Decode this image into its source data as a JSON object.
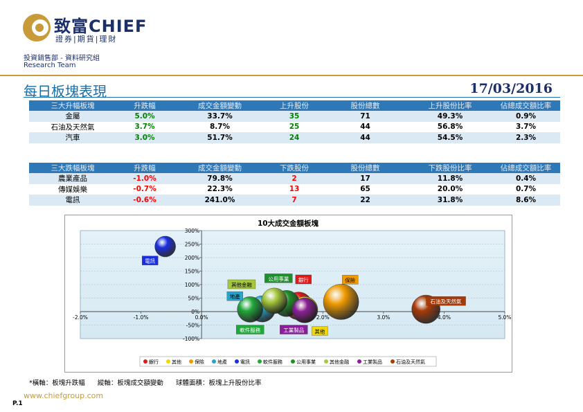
{
  "header": {
    "brand": "致富CHIEF",
    "brand_sub": "證券|期貨|理財",
    "department": "投資銷售部 - 資料研究組",
    "team": "Research Team"
  },
  "title": "每日板塊表現",
  "date": "17/03/2016",
  "gainers": {
    "columns": [
      "三大升幅板塊",
      "升跌幅",
      "成交金額變動",
      "上升股份",
      "股份總數",
      "上升股份比率",
      "佔總成交額比率"
    ],
    "rows": [
      [
        "金屬",
        "5.0%",
        "33.7%",
        "35",
        "71",
        "49.3%",
        "0.9%"
      ],
      [
        "石油及天然氣",
        "3.7%",
        "8.7%",
        "25",
        "44",
        "56.8%",
        "3.7%"
      ],
      [
        "汽車",
        "3.0%",
        "51.7%",
        "24",
        "44",
        "54.5%",
        "2.3%"
      ]
    ]
  },
  "losers": {
    "columns": [
      "三大跌幅板塊",
      "升跌幅",
      "成交金額變動",
      "下跌股份",
      "股份總數",
      "下跌股份比率",
      "佔總成交額比率"
    ],
    "rows": [
      [
        "農業產品",
        "-1.0%",
        "79.8%",
        "2",
        "17",
        "11.8%",
        "0.4%"
      ],
      [
        "傳媒娛樂",
        "-0.7%",
        "22.3%",
        "13",
        "65",
        "20.0%",
        "0.7%"
      ],
      [
        "電訊",
        "-0.6%",
        "241.0%",
        "7",
        "22",
        "31.8%",
        "8.6%"
      ]
    ]
  },
  "colors": {
    "gain": "#008000",
    "loss": "#ff0000",
    "header_bg": "#2f78b8",
    "row_alt": "#dbe9f4",
    "plot_bg": "#d6e9f3",
    "accent_gold": "#c99a3a"
  },
  "chart_data": {
    "type": "scatter",
    "title": "10大成交金額板塊",
    "xlim": [
      -0.02,
      0.05
    ],
    "ylim": [
      -1.0,
      3.0
    ],
    "x_ticks": [
      "-2.0%",
      "-1.0%",
      "0.0%",
      "1.0%",
      "2.0%",
      "3.0%",
      "4.0%",
      "5.0%"
    ],
    "y_ticks": [
      "300%",
      "250%",
      "200%",
      "150%",
      "100%",
      "50%",
      "0%",
      "-50%",
      "-100%"
    ],
    "grid": true,
    "legend_position": "bottom",
    "series": [
      {
        "name": "銀行",
        "x": 0.016,
        "y": 0.21,
        "size": 0.55,
        "color": "#e01a1a"
      },
      {
        "name": "其他",
        "x": 0.017,
        "y": 0.07,
        "size": 0.5,
        "color": "#f0d800"
      },
      {
        "name": "保險",
        "x": 0.023,
        "y": 0.36,
        "size": 0.8,
        "color": "#f09a00"
      },
      {
        "name": "地產",
        "x": 0.01,
        "y": 0.1,
        "size": 0.5,
        "color": "#29a3c8"
      },
      {
        "name": "電訊",
        "x": -0.006,
        "y": 2.41,
        "size": 0.32,
        "color": "#1a2ee0"
      },
      {
        "name": "軟件服務",
        "x": 0.008,
        "y": 0.08,
        "size": 0.48,
        "color": "#22a83a"
      },
      {
        "name": "公用事業",
        "x": 0.014,
        "y": 0.3,
        "size": 0.5,
        "color": "#1f8f2e"
      },
      {
        "name": "其他金融",
        "x": 0.012,
        "y": 0.4,
        "size": 0.48,
        "color": "#a6c83c"
      },
      {
        "name": "工業製品",
        "x": 0.017,
        "y": 0.05,
        "size": 0.45,
        "color": "#8a1f9a"
      },
      {
        "name": "石油及天然氣",
        "x": 0.037,
        "y": 0.087,
        "size": 0.57,
        "color": "#a83a08"
      }
    ],
    "labels": [
      {
        "text": "電訊",
        "x": -0.0085,
        "y": 1.88
      },
      {
        "text": "公用事業",
        "x": 0.0127,
        "y": 1.22
      },
      {
        "text": "銀行",
        "x": 0.0168,
        "y": 1.18
      },
      {
        "text": "保險",
        "x": 0.0245,
        "y": 1.17
      },
      {
        "text": "其他金融",
        "x": 0.0066,
        "y": 1.0
      },
      {
        "text": "地產",
        "x": 0.0055,
        "y": 0.56
      },
      {
        "text": "石油及天然氣",
        "x": 0.0403,
        "y": 0.38
      },
      {
        "text": "軟件服務",
        "x": 0.008,
        "y": -0.68
      },
      {
        "text": "工業製品",
        "x": 0.0152,
        "y": -0.68
      },
      {
        "text": "其他",
        "x": 0.0195,
        "y": -0.73
      }
    ]
  },
  "footnote": {
    "x_axis": "*橫軸：板塊升跌幅",
    "y_axis": "縱軸：板塊成交額變動",
    "bubble": "球體面積：板塊上升股份比率"
  },
  "website": "www.chiefgroup.com",
  "page": "P.1"
}
